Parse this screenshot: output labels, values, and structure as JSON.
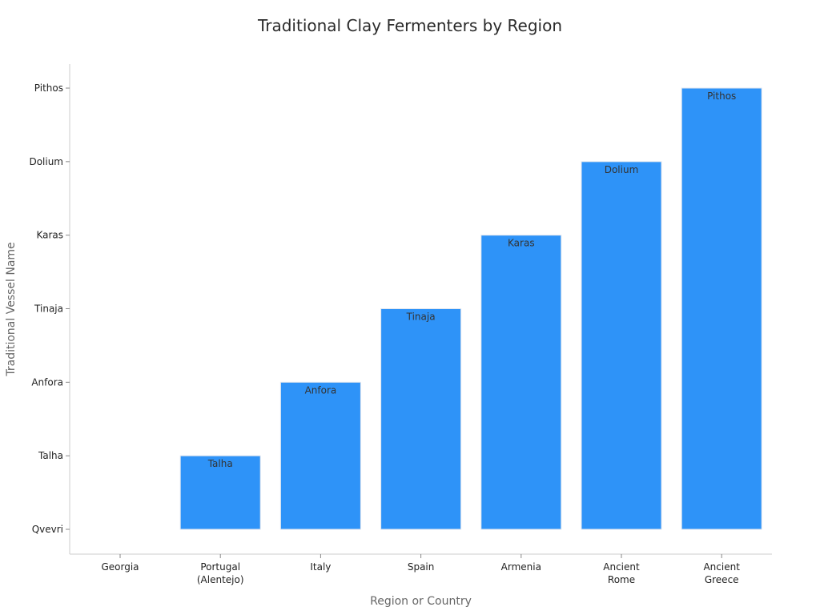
{
  "chart_data": {
    "type": "bar",
    "title": "Traditional Clay Fermenters by Region",
    "xlabel": "Region or Country",
    "ylabel": "Traditional Vessel Name",
    "categories": [
      "Georgia",
      "Portugal (Alentejo)",
      "Italy",
      "Spain",
      "Armenia",
      "Ancient Rome",
      "Ancient Greece"
    ],
    "category_lines": [
      [
        "Georgia"
      ],
      [
        "Portugal",
        "(Alentejo)"
      ],
      [
        "Italy"
      ],
      [
        "Spain"
      ],
      [
        "Armenia"
      ],
      [
        "Ancient",
        "Rome"
      ],
      [
        "Ancient",
        "Greece"
      ]
    ],
    "y_categories": [
      "Qvevri",
      "Talha",
      "Anfora",
      "Tinaja",
      "Karas",
      "Dolium",
      "Pithos"
    ],
    "values": [
      "Qvevri",
      "Talha",
      "Anfora",
      "Tinaja",
      "Karas",
      "Dolium",
      "Pithos"
    ],
    "bar_labels": [
      "",
      "Talha",
      "Anfora",
      "Tinaja",
      "Karas",
      "Dolium",
      "Pithos"
    ],
    "grid": false,
    "legend": "none",
    "colors": {
      "bar": "#2e93f8",
      "bar_edge": "#e0e6ef",
      "axis": "#cccccc",
      "tick": "#888888"
    }
  }
}
